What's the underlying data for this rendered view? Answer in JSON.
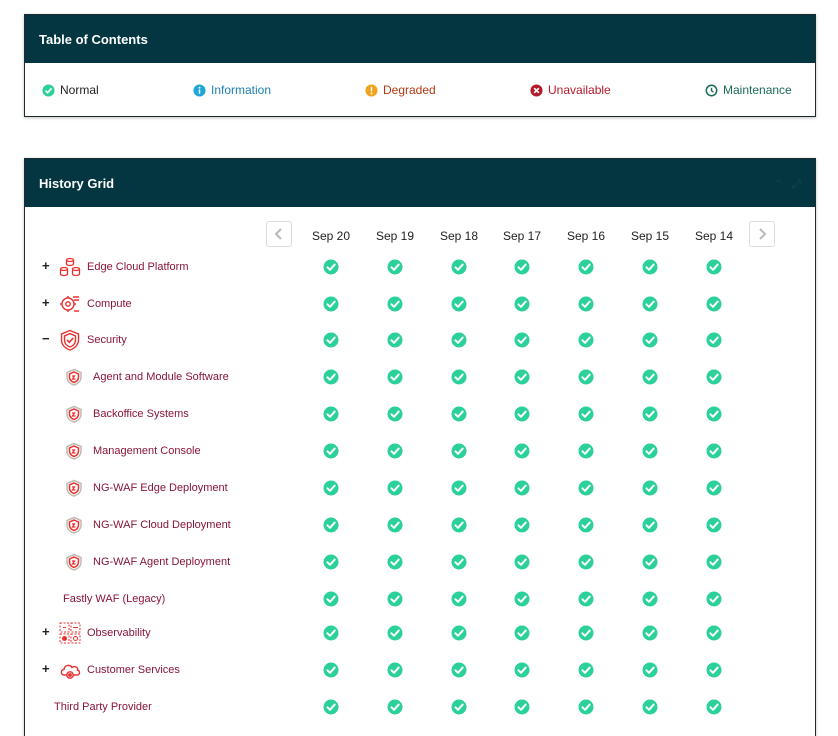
{
  "toc": {
    "title": "Table of Contents",
    "legend": [
      {
        "label": "Normal",
        "icon": "check-circle-icon",
        "color": "#2bd09a",
        "text_color": "#222222"
      },
      {
        "label": "Information",
        "icon": "info-icon",
        "color": "#1ea7d6",
        "text_color": "#1c7fb0"
      },
      {
        "label": "Degraded",
        "icon": "warning-icon",
        "color": "#f2a218",
        "text_color": "#b5370f"
      },
      {
        "label": "Unavailable",
        "icon": "x-circle-icon",
        "color": "#b31b2d",
        "text_color": "#b31b2d"
      },
      {
        "label": "Maintenance",
        "icon": "clock-icon",
        "color": "#1b6b5a",
        "text_color": "#1b6b5a"
      }
    ]
  },
  "history": {
    "title": "History Grid",
    "dates": [
      "Sep 20",
      "Sep 19",
      "Sep 18",
      "Sep 17",
      "Sep 16",
      "Sep 15",
      "Sep 14"
    ],
    "rows": [
      {
        "name": "Edge Cloud Platform",
        "toggle": "+",
        "icon": "database-cluster-icon",
        "level": 0,
        "status": [
          "normal",
          "normal",
          "normal",
          "normal",
          "normal",
          "normal",
          "normal"
        ]
      },
      {
        "name": "Compute",
        "toggle": "+",
        "icon": "compute-cog-icon",
        "level": 0,
        "status": [
          "normal",
          "normal",
          "normal",
          "normal",
          "normal",
          "normal",
          "normal"
        ]
      },
      {
        "name": "Security",
        "toggle": "−",
        "icon": "shield-icon",
        "level": 0,
        "status": [
          "normal",
          "normal",
          "normal",
          "normal",
          "normal",
          "normal",
          "normal"
        ]
      },
      {
        "name": "Agent and Module Software",
        "toggle": "",
        "icon": "shield-sub-icon",
        "level": 1,
        "status": [
          "normal",
          "normal",
          "normal",
          "normal",
          "normal",
          "normal",
          "normal"
        ]
      },
      {
        "name": "Backoffice Systems",
        "toggle": "",
        "icon": "shield-sub-icon",
        "level": 1,
        "status": [
          "normal",
          "normal",
          "normal",
          "normal",
          "normal",
          "normal",
          "normal"
        ]
      },
      {
        "name": "Management Console",
        "toggle": "",
        "icon": "shield-sub-icon",
        "level": 1,
        "status": [
          "normal",
          "normal",
          "normal",
          "normal",
          "normal",
          "normal",
          "normal"
        ]
      },
      {
        "name": "NG-WAF Edge Deployment",
        "toggle": "",
        "icon": "shield-sub-icon",
        "level": 1,
        "status": [
          "normal",
          "normal",
          "normal",
          "normal",
          "normal",
          "normal",
          "normal"
        ]
      },
      {
        "name": "NG-WAF Cloud Deployment",
        "toggle": "",
        "icon": "shield-sub-icon",
        "level": 1,
        "status": [
          "normal",
          "normal",
          "normal",
          "normal",
          "normal",
          "normal",
          "normal"
        ]
      },
      {
        "name": "NG-WAF Agent Deployment",
        "toggle": "",
        "icon": "shield-sub-icon",
        "level": 1,
        "status": [
          "normal",
          "normal",
          "normal",
          "normal",
          "normal",
          "normal",
          "normal"
        ]
      },
      {
        "name": "Fastly WAF (Legacy)",
        "toggle": "",
        "icon": "",
        "level": 2,
        "status": [
          "normal",
          "normal",
          "normal",
          "normal",
          "normal",
          "normal",
          "normal"
        ]
      },
      {
        "name": "Observability",
        "toggle": "+",
        "icon": "observability-grid-icon",
        "level": 0,
        "status": [
          "normal",
          "normal",
          "normal",
          "normal",
          "normal",
          "normal",
          "normal"
        ]
      },
      {
        "name": "Customer Services",
        "toggle": "+",
        "icon": "cloud-support-icon",
        "level": 0,
        "status": [
          "normal",
          "normal",
          "normal",
          "normal",
          "normal",
          "normal",
          "normal"
        ]
      },
      {
        "name": "Third Party Provider",
        "toggle": "",
        "icon": "",
        "level": 3,
        "status": [
          "normal",
          "normal",
          "normal",
          "normal",
          "normal",
          "normal",
          "normal"
        ]
      }
    ]
  }
}
